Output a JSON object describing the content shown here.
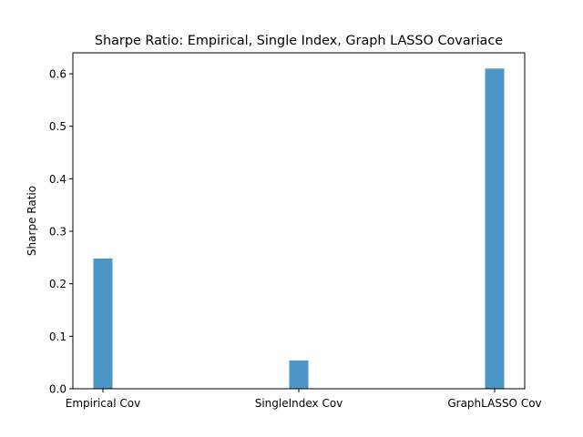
{
  "chart_data": {
    "type": "bar",
    "title": "Sharpe Ratio: Empirical, Single Index, Graph LASSO Covariace",
    "xlabel": "",
    "ylabel": "Sharpe Ratio",
    "categories": [
      "Empirical Cov",
      "SingleIndex Cov",
      "GraphLASSO Cov"
    ],
    "values": [
      0.248,
      0.054,
      0.61
    ],
    "ylim": [
      0,
      0.64
    ],
    "yticks": [
      0.0,
      0.1,
      0.2,
      0.3,
      0.4,
      0.5,
      0.6
    ],
    "ytick_labels": [
      "0.0",
      "0.1",
      "0.2",
      "0.3",
      "0.4",
      "0.5",
      "0.6"
    ],
    "bar_color": "#4b95c7",
    "grid": false,
    "legend": "none"
  }
}
